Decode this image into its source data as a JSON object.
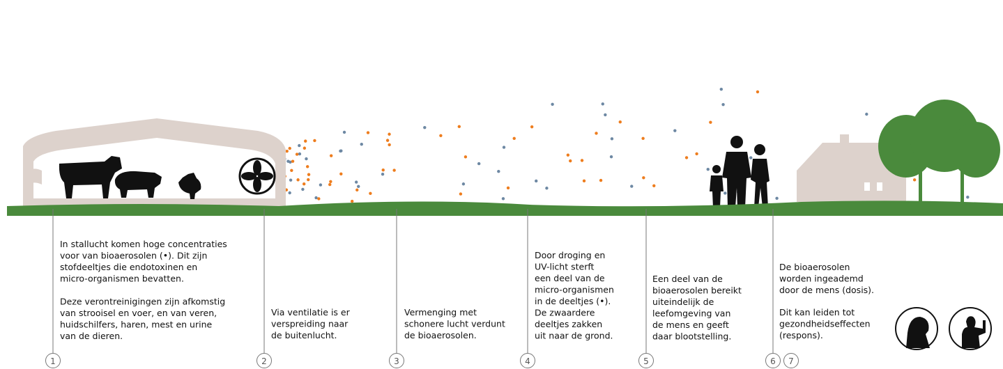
{
  "steps": [
    {
      "number": "1",
      "paragraphs": [
        [
          "In stallucht komen hoge concentraties",
          "voor van bioaerosolen (•). Dit zijn",
          "stofdeeltjes die endotoxinen en",
          "micro-organismen bevatten."
        ],
        [
          "Deze verontreinigingen zijn afkomstig",
          "van strooisel en voer, en van veren,",
          "huidschilfers, haren, mest en urine",
          "van de dieren."
        ]
      ]
    },
    {
      "number": "2",
      "paragraphs": [
        [
          "Via ventilatie is er",
          "verspreiding naar",
          "de buitenlucht."
        ]
      ]
    },
    {
      "number": "3",
      "paragraphs": [
        [
          "Vermenging met",
          "schonere lucht verdunt",
          "de bioaerosolen."
        ]
      ]
    },
    {
      "number": "4",
      "paragraphs": [
        [
          "Door droging en",
          "UV-licht sterft",
          "een deel van de",
          "micro-organismen",
          "in de deeltjes (•).",
          "De zwaardere",
          "deeltjes zakken",
          "uit naar de grond."
        ]
      ]
    },
    {
      "number": "5",
      "paragraphs": [
        [
          "Een deel van de",
          "bioaerosolen bereikt",
          "uiteindelijk de",
          "leefomgeving van",
          "de mens en geeft",
          "daar blootstelling."
        ]
      ]
    },
    {
      "number": "6",
      "paragraphs": [
        [
          "De bioaerosolen",
          "worden ingeademd",
          "door de mens (dosis)."
        ]
      ]
    },
    {
      "number": "7",
      "paragraphs": [
        [
          "Dit kan leiden tot",
          "gezondheidseffecten",
          "(respons)."
        ]
      ]
    }
  ]
}
